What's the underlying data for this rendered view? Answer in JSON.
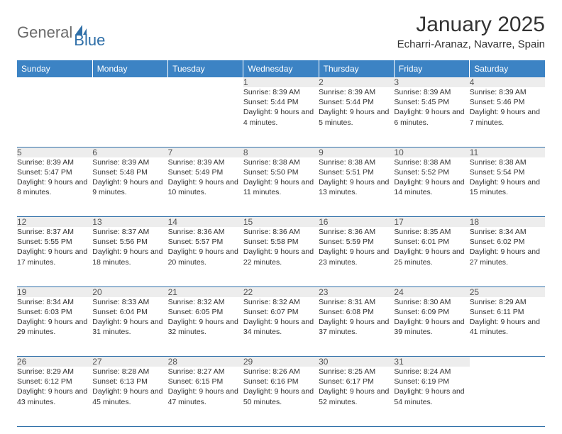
{
  "brand": {
    "part1": "General",
    "part2": "Blue"
  },
  "title": "January 2025",
  "location": "Echarri-Aranaz, Navarre, Spain",
  "colors": {
    "header_bg": "#3c83c4",
    "border": "#2f6fa8",
    "daynum_bg": "#ededed",
    "logo_gray": "#6b6b6b",
    "logo_blue": "#2f6fa8"
  },
  "day_headers": [
    "Sunday",
    "Monday",
    "Tuesday",
    "Wednesday",
    "Thursday",
    "Friday",
    "Saturday"
  ],
  "weeks": [
    [
      null,
      null,
      null,
      {
        "n": "1",
        "sr": "8:39 AM",
        "ss": "5:44 PM",
        "dl": "9 hours and 4 minutes."
      },
      {
        "n": "2",
        "sr": "8:39 AM",
        "ss": "5:44 PM",
        "dl": "9 hours and 5 minutes."
      },
      {
        "n": "3",
        "sr": "8:39 AM",
        "ss": "5:45 PM",
        "dl": "9 hours and 6 minutes."
      },
      {
        "n": "4",
        "sr": "8:39 AM",
        "ss": "5:46 PM",
        "dl": "9 hours and 7 minutes."
      }
    ],
    [
      {
        "n": "5",
        "sr": "8:39 AM",
        "ss": "5:47 PM",
        "dl": "9 hours and 8 minutes."
      },
      {
        "n": "6",
        "sr": "8:39 AM",
        "ss": "5:48 PM",
        "dl": "9 hours and 9 minutes."
      },
      {
        "n": "7",
        "sr": "8:39 AM",
        "ss": "5:49 PM",
        "dl": "9 hours and 10 minutes."
      },
      {
        "n": "8",
        "sr": "8:38 AM",
        "ss": "5:50 PM",
        "dl": "9 hours and 11 minutes."
      },
      {
        "n": "9",
        "sr": "8:38 AM",
        "ss": "5:51 PM",
        "dl": "9 hours and 13 minutes."
      },
      {
        "n": "10",
        "sr": "8:38 AM",
        "ss": "5:52 PM",
        "dl": "9 hours and 14 minutes."
      },
      {
        "n": "11",
        "sr": "8:38 AM",
        "ss": "5:54 PM",
        "dl": "9 hours and 15 minutes."
      }
    ],
    [
      {
        "n": "12",
        "sr": "8:37 AM",
        "ss": "5:55 PM",
        "dl": "9 hours and 17 minutes."
      },
      {
        "n": "13",
        "sr": "8:37 AM",
        "ss": "5:56 PM",
        "dl": "9 hours and 18 minutes."
      },
      {
        "n": "14",
        "sr": "8:36 AM",
        "ss": "5:57 PM",
        "dl": "9 hours and 20 minutes."
      },
      {
        "n": "15",
        "sr": "8:36 AM",
        "ss": "5:58 PM",
        "dl": "9 hours and 22 minutes."
      },
      {
        "n": "16",
        "sr": "8:36 AM",
        "ss": "5:59 PM",
        "dl": "9 hours and 23 minutes."
      },
      {
        "n": "17",
        "sr": "8:35 AM",
        "ss": "6:01 PM",
        "dl": "9 hours and 25 minutes."
      },
      {
        "n": "18",
        "sr": "8:34 AM",
        "ss": "6:02 PM",
        "dl": "9 hours and 27 minutes."
      }
    ],
    [
      {
        "n": "19",
        "sr": "8:34 AM",
        "ss": "6:03 PM",
        "dl": "9 hours and 29 minutes."
      },
      {
        "n": "20",
        "sr": "8:33 AM",
        "ss": "6:04 PM",
        "dl": "9 hours and 31 minutes."
      },
      {
        "n": "21",
        "sr": "8:32 AM",
        "ss": "6:05 PM",
        "dl": "9 hours and 32 minutes."
      },
      {
        "n": "22",
        "sr": "8:32 AM",
        "ss": "6:07 PM",
        "dl": "9 hours and 34 minutes."
      },
      {
        "n": "23",
        "sr": "8:31 AM",
        "ss": "6:08 PM",
        "dl": "9 hours and 37 minutes."
      },
      {
        "n": "24",
        "sr": "8:30 AM",
        "ss": "6:09 PM",
        "dl": "9 hours and 39 minutes."
      },
      {
        "n": "25",
        "sr": "8:29 AM",
        "ss": "6:11 PM",
        "dl": "9 hours and 41 minutes."
      }
    ],
    [
      {
        "n": "26",
        "sr": "8:29 AM",
        "ss": "6:12 PM",
        "dl": "9 hours and 43 minutes."
      },
      {
        "n": "27",
        "sr": "8:28 AM",
        "ss": "6:13 PM",
        "dl": "9 hours and 45 minutes."
      },
      {
        "n": "28",
        "sr": "8:27 AM",
        "ss": "6:15 PM",
        "dl": "9 hours and 47 minutes."
      },
      {
        "n": "29",
        "sr": "8:26 AM",
        "ss": "6:16 PM",
        "dl": "9 hours and 50 minutes."
      },
      {
        "n": "30",
        "sr": "8:25 AM",
        "ss": "6:17 PM",
        "dl": "9 hours and 52 minutes."
      },
      {
        "n": "31",
        "sr": "8:24 AM",
        "ss": "6:19 PM",
        "dl": "9 hours and 54 minutes."
      },
      null
    ]
  ],
  "labels": {
    "sunrise": "Sunrise:",
    "sunset": "Sunset:",
    "daylight": "Daylight:"
  }
}
